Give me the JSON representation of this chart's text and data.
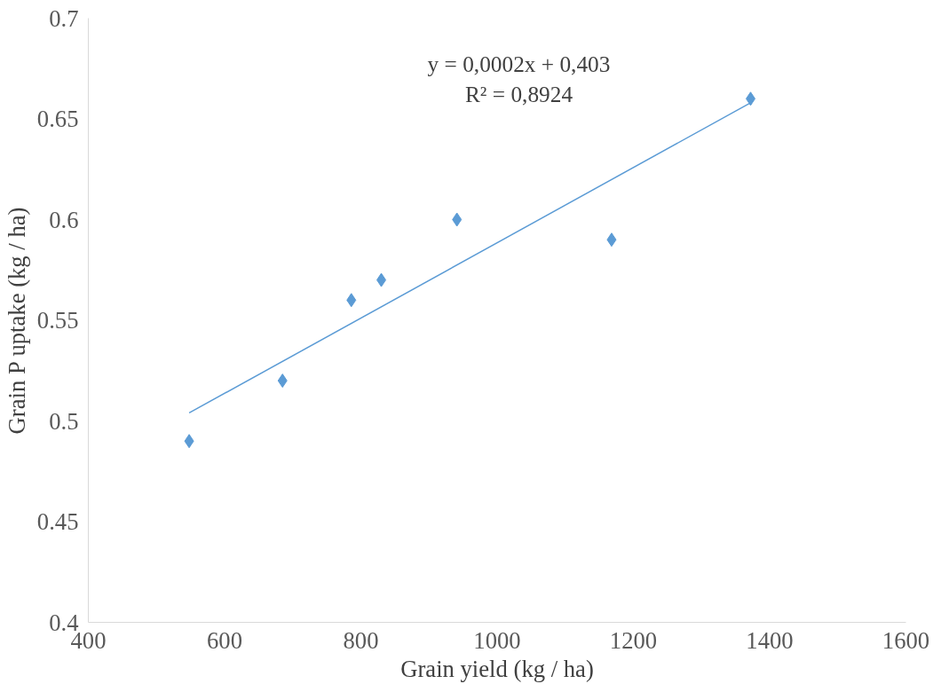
{
  "chart_data": {
    "type": "scatter",
    "xlabel": "Grain yield (kg / ha)",
    "ylabel": "Grain P uptake (kg / ha)",
    "xlim": [
      400,
      1600
    ],
    "xticks": [
      400,
      600,
      800,
      1000,
      1200,
      1400,
      1600
    ],
    "ylim": [
      0.4,
      0.7
    ],
    "yticks": [
      {
        "value": 0.4,
        "label": "0.4"
      },
      0.45,
      {
        "value": 0.5,
        "label": "0.5"
      },
      0.55,
      {
        "value": 0.6,
        "label": "0.6"
      },
      0.65,
      {
        "value": 0.7,
        "label": "0.7"
      }
    ],
    "grid": false,
    "annotations": [
      "y = 0,0002x + 0,403",
      "R² = 0,8924"
    ],
    "series": [
      {
        "marker": "diamond",
        "color": "#5b9bd5",
        "x": [
          548,
          685,
          786,
          830,
          941,
          1168,
          1372
        ],
        "values": [
          0.49,
          0.52,
          0.56,
          0.57,
          0.6,
          0.59,
          0.66
        ]
      },
      {
        "type": "line",
        "marker": "none",
        "color": "#5b9bd5",
        "x": [
          548,
          1372
        ],
        "values": [
          0.504,
          0.658
        ]
      }
    ]
  }
}
